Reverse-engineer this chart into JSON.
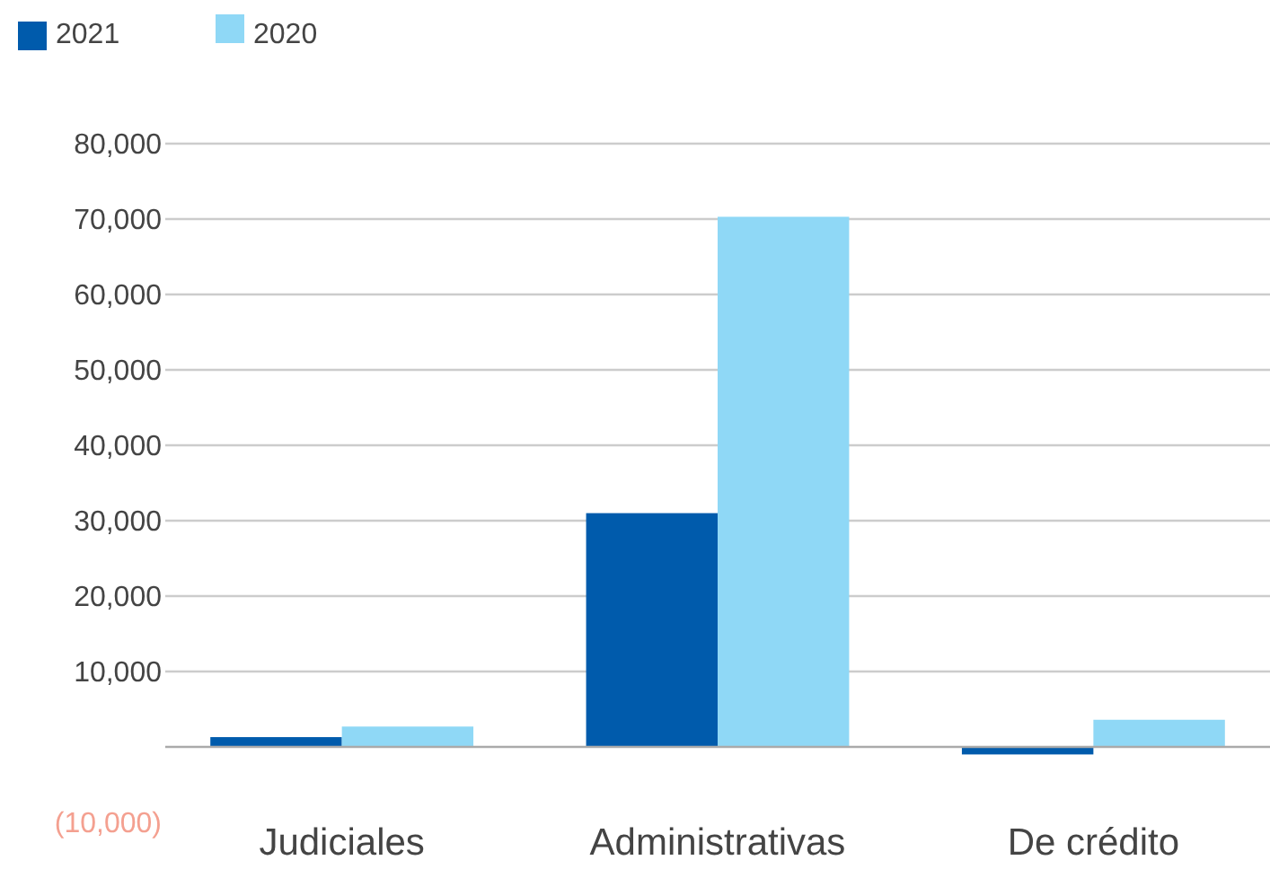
{
  "chart_data": {
    "type": "bar",
    "categories": [
      "Judiciales",
      "Administrativas",
      "De crédito"
    ],
    "series": [
      {
        "name": "2021",
        "color": "#005bac",
        "values": [
          1300,
          31000,
          -1000
        ]
      },
      {
        "name": "2020",
        "color": "#8fd8f6",
        "values": [
          2700,
          70300,
          3600
        ]
      }
    ],
    "ylim": [
      -10000,
      80000
    ],
    "yticks": [
      {
        "value": -10000,
        "label": "(10,000)"
      },
      {
        "value": 0,
        "label": null
      },
      {
        "value": 10000,
        "label": "10,000"
      },
      {
        "value": 20000,
        "label": "20,000"
      },
      {
        "value": 30000,
        "label": "30,000"
      },
      {
        "value": 40000,
        "label": "40,000"
      },
      {
        "value": 50000,
        "label": "50,000"
      },
      {
        "value": 60000,
        "label": "60,000"
      },
      {
        "value": 70000,
        "label": "70,000"
      },
      {
        "value": 80000,
        "label": "80,000"
      }
    ],
    "grid": "y",
    "legend": "top left"
  }
}
